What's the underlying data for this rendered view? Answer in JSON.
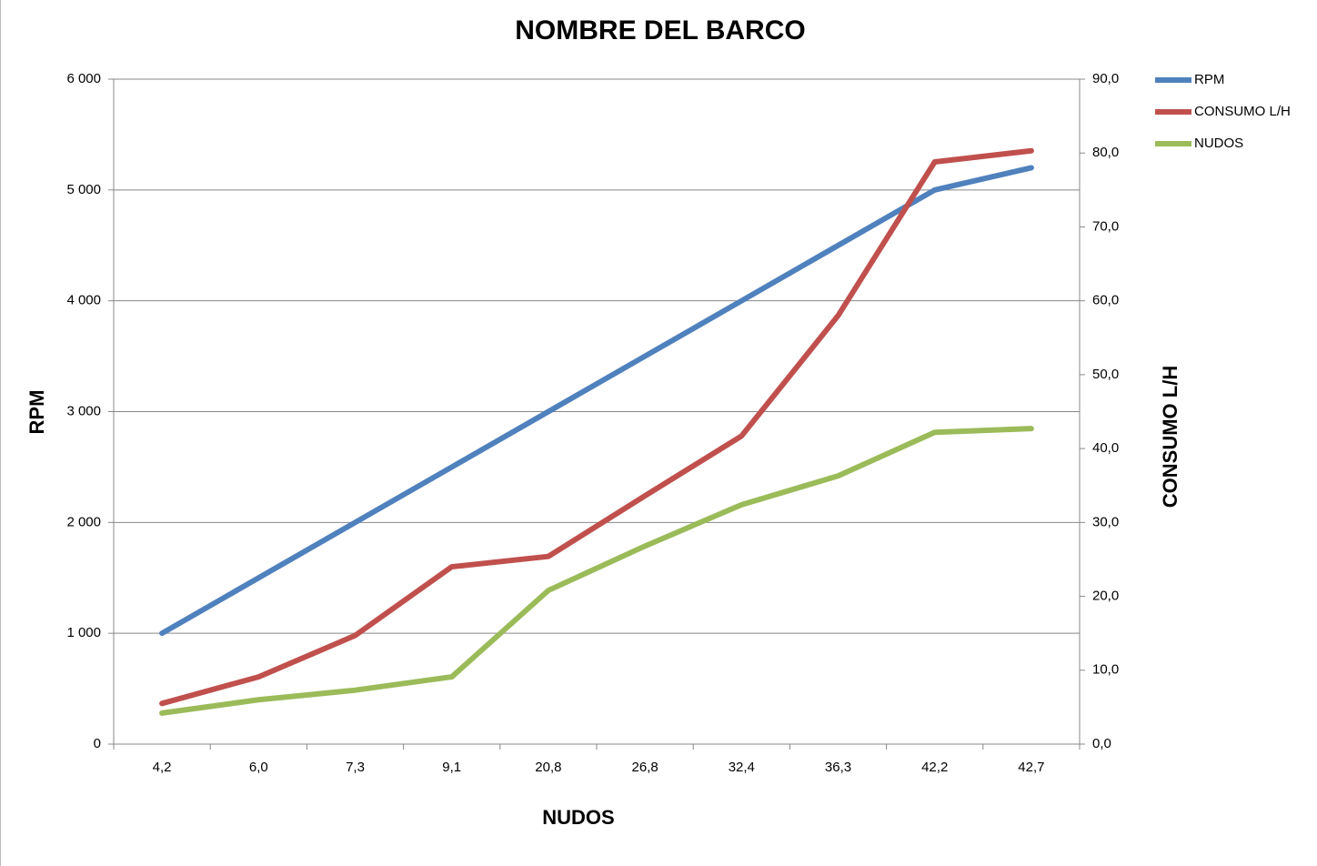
{
  "chart_data": {
    "type": "line",
    "title": "NOMBRE DEL BARCO",
    "x_label": "NUDOS",
    "y_label": "RPM",
    "y2_label": "CONSUMO L/H",
    "categories": [
      "4,2",
      "6,0",
      "7,3",
      "9,1",
      "20,8",
      "26,8",
      "32,4",
      "36,3",
      "42,2",
      "42,7"
    ],
    "series": [
      {
        "name": "RPM",
        "color": "#4f81bd",
        "values": [
          1000,
          1500,
          2000,
          2500,
          3000,
          3500,
          4000,
          4500,
          5000,
          5200
        ]
      },
      {
        "name": "CONSUMO L/H",
        "color": "#c0504d",
        "axis": "y2",
        "values": [
          5.5,
          9.1,
          14.7,
          24.0,
          25.4,
          33.6,
          41.7,
          58.0,
          78.8,
          80.3
        ]
      },
      {
        "name": "NUDOS",
        "color": "#9bbb59",
        "axis": "y2",
        "values": [
          4.2,
          6.0,
          7.3,
          9.1,
          20.8,
          26.8,
          32.4,
          36.3,
          42.2,
          42.7
        ]
      }
    ],
    "ylim": [
      0,
      6000
    ],
    "yticks": [
      0,
      {
        "value": 1000,
        "label": "1 000"
      },
      {
        "value": 2000,
        "label": "2 000"
      },
      {
        "value": 3000,
        "label": "3 000"
      },
      {
        "value": 4000,
        "label": "4 000"
      },
      {
        "value": 5000,
        "label": "5 000"
      },
      {
        "value": 6000,
        "label": "6 000"
      }
    ],
    "y2lim": [
      0,
      90
    ],
    "y2ticks": [
      {
        "value": 0,
        "label": "0,0"
      },
      {
        "value": 10,
        "label": "10,0"
      },
      {
        "value": 20,
        "label": "20,0"
      },
      {
        "value": 30,
        "label": "30,0"
      },
      {
        "value": 40,
        "label": "40,0"
      },
      {
        "value": 50,
        "label": "50,0"
      },
      {
        "value": 60,
        "label": "60,0"
      },
      {
        "value": 70,
        "label": "70,0"
      },
      {
        "value": 80,
        "label": "80,0"
      },
      {
        "value": 90,
        "label": "90,0"
      }
    ],
    "grid": true,
    "legend": "right"
  }
}
